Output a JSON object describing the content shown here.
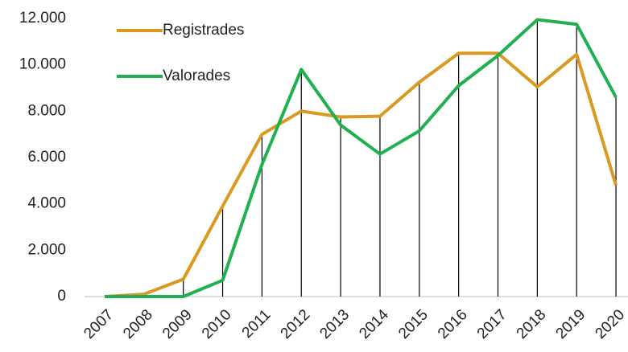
{
  "chart_data": {
    "type": "line",
    "categories": [
      "2007",
      "2008",
      "2009",
      "2010",
      "2011",
      "2012",
      "2013",
      "2014",
      "2015",
      "2016",
      "2017",
      "2018",
      "2019",
      "2020"
    ],
    "series": [
      {
        "name": "Registrades",
        "color": "#d99a1f",
        "values": [
          0,
          100,
          750,
          3900,
          7000,
          8000,
          7750,
          7780,
          9250,
          10500,
          10500,
          9050,
          10450,
          4800
        ]
      },
      {
        "name": "Valorades",
        "color": "#1fb050",
        "values": [
          0,
          0,
          0,
          700,
          5700,
          9800,
          7400,
          6150,
          7150,
          9100,
          10400,
          11950,
          11750,
          8600
        ]
      }
    ],
    "ylim": [
      0,
      12000
    ],
    "yticks": [
      0,
      {
        "value": 2000,
        "label": "2.000"
      },
      {
        "value": 4000,
        "label": "4.000"
      },
      {
        "value": 6000,
        "label": "6.000"
      },
      {
        "value": 8000,
        "label": "8.000"
      },
      {
        "value": 10000,
        "label": "10.000"
      },
      {
        "value": 12000,
        "label": "12.000"
      }
    ],
    "grid": false,
    "drop_lines": true,
    "legend": "upper left"
  }
}
